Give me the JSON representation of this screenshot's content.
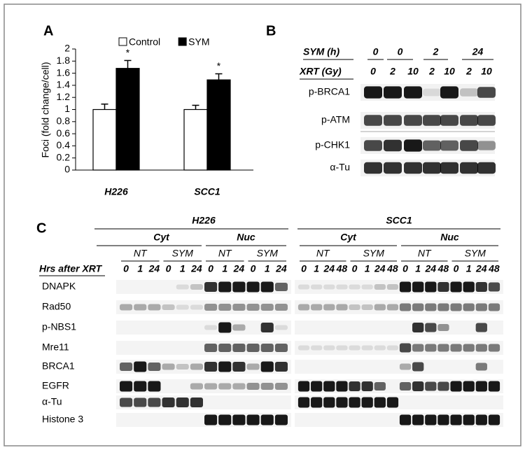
{
  "chart_data": {
    "type": "bar",
    "panel_label": "A",
    "ylabel": "Foci (fold change/cell)",
    "categories": [
      "H226",
      "SCC1"
    ],
    "series": [
      {
        "name": "Control",
        "color": "#ffffff",
        "values": [
          1,
          1
        ],
        "errors": [
          0.09,
          0.07
        ]
      },
      {
        "name": "SYM",
        "color": "#000000",
        "values": [
          1.68,
          1.49
        ],
        "errors": [
          0.13,
          0.1
        ],
        "annotations": [
          "*",
          "*"
        ]
      }
    ],
    "ylim": [
      0,
      2
    ],
    "yticks": [
      0,
      0.2,
      0.4,
      0.6,
      0.8,
      1,
      1.2,
      1.4,
      1.6,
      1.8,
      2
    ],
    "legend": "top"
  },
  "panel_b": {
    "label": "B",
    "headers": [
      {
        "label": "SYM (h)",
        "values": [
          "0",
          "0",
          "2",
          "24"
        ]
      },
      {
        "label": "XRT (Gy)",
        "values": [
          "0",
          "2",
          "10",
          "2",
          "10",
          "2",
          "10"
        ]
      }
    ],
    "blots": [
      "p-BRCA1",
      "p-ATM",
      "p-CHK1",
      "α-Tu"
    ]
  },
  "panel_c": {
    "label": "C",
    "time_header": "Hrs after XRT",
    "cell_lines": [
      {
        "name": "H226",
        "fractions": [
          {
            "name": "Cyt",
            "treatments": [
              {
                "name": "NT",
                "times": [
                  "0",
                  "1",
                  "24"
                ]
              },
              {
                "name": "SYM",
                "times": [
                  "0",
                  "1",
                  "24"
                ]
              }
            ]
          },
          {
            "name": "Nuc",
            "treatments": [
              {
                "name": "NT",
                "times": [
                  "0",
                  "1",
                  "24"
                ]
              },
              {
                "name": "SYM",
                "times": [
                  "0",
                  "1",
                  "24"
                ]
              }
            ]
          }
        ]
      },
      {
        "name": "SCC1",
        "fractions": [
          {
            "name": "Cyt",
            "treatments": [
              {
                "name": "NT",
                "times": [
                  "0",
                  "1",
                  "24",
                  "48"
                ]
              },
              {
                "name": "SYM",
                "times": [
                  "0",
                  "1",
                  "24",
                  "48"
                ]
              }
            ]
          },
          {
            "name": "Nuc",
            "treatments": [
              {
                "name": "NT",
                "times": [
                  "0",
                  "1",
                  "24",
                  "48"
                ]
              },
              {
                "name": "SYM",
                "times": [
                  "0",
                  "1",
                  "24",
                  "48"
                ]
              }
            ]
          }
        ]
      }
    ],
    "blots": [
      "DNAPK",
      "Rad50",
      "p-NBS1",
      "Mre11",
      "BRCA1",
      "EGFR",
      "α-Tu",
      "Histone 3"
    ]
  }
}
